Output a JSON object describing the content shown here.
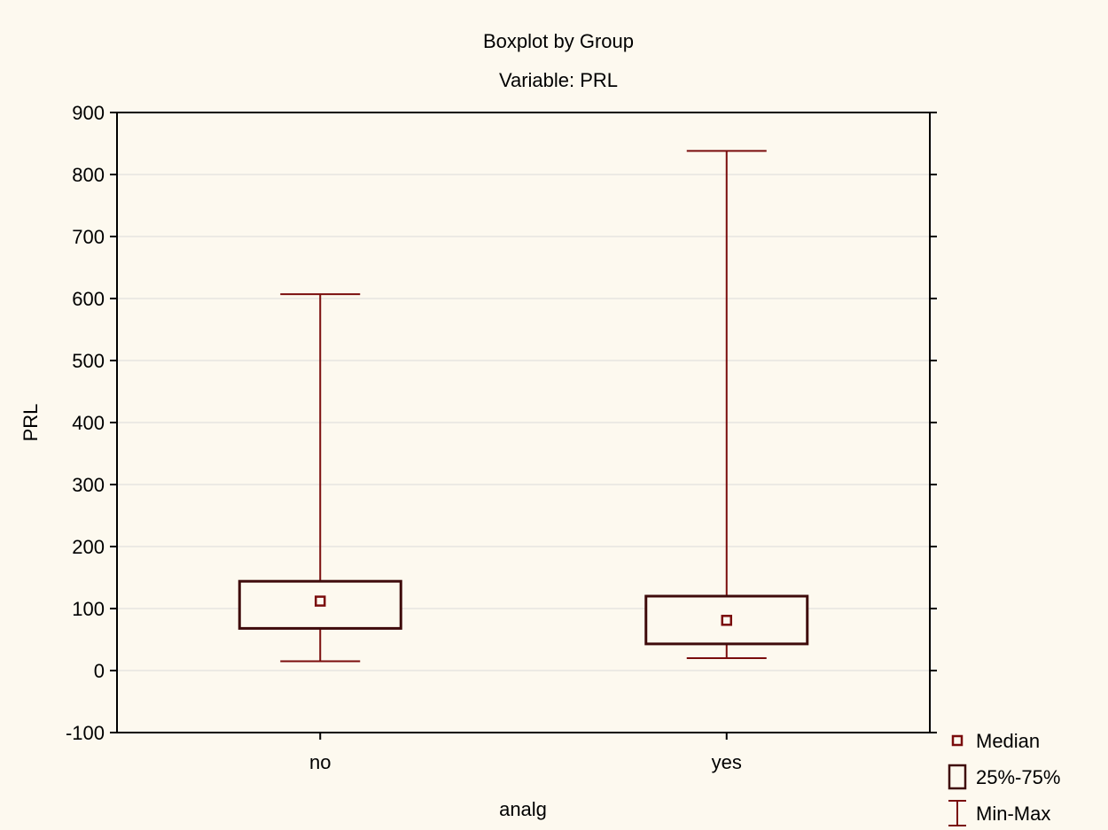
{
  "chart_data": {
    "type": "boxplot",
    "title": "Boxplot by Group",
    "subtitle": "Variable: PRL",
    "xlabel": "analg",
    "ylabel": "PRL",
    "ylim": [
      -100,
      900
    ],
    "yticks": [
      -100,
      0,
      100,
      200,
      300,
      400,
      500,
      600,
      700,
      800,
      900
    ],
    "grid": true,
    "categories": [
      "no",
      "yes"
    ],
    "groups": [
      {
        "category": "no",
        "min": 15,
        "q1": 68,
        "median": 112,
        "q3": 144,
        "max": 607
      },
      {
        "category": "yes",
        "min": 20,
        "q1": 43,
        "median": 81,
        "q3": 120,
        "max": 838
      }
    ],
    "legend": {
      "placement": "bottom-right",
      "items": [
        {
          "label": "Median",
          "icon": "median-square-marker-icon"
        },
        {
          "label": "25%-75%",
          "icon": "box-range-icon"
        },
        {
          "label": "Min-Max",
          "icon": "whisker-range-icon"
        }
      ]
    },
    "colors": {
      "background": "#fdf9ef",
      "series": "#7a0c0c",
      "box": "#3f0b0b",
      "grid": "#dadada",
      "axis": "#000000"
    }
  }
}
